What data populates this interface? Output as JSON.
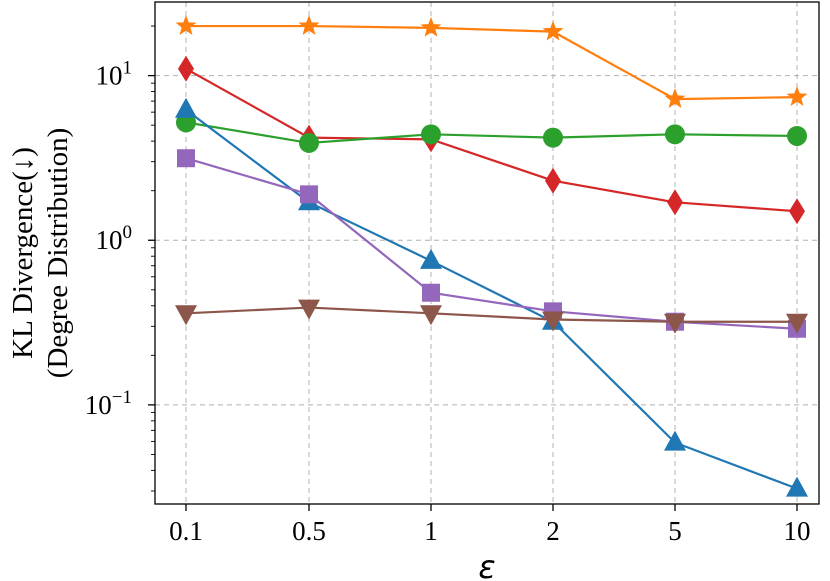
{
  "chart_data": {
    "type": "line",
    "title": "",
    "xlabel": "ε",
    "ylabel": "KL Divergence(↓)",
    "ylabel_line2": "(Degree Distribution)",
    "y_scale": "log",
    "ylim": [
      0.025,
      28
    ],
    "categories": [
      "0.1",
      "0.5",
      "1",
      "2",
      "5",
      "10"
    ],
    "y_ticks": [
      {
        "value": 0.1,
        "base": "10",
        "exp": "−1"
      },
      {
        "value": 1,
        "base": "10",
        "exp": "0"
      },
      {
        "value": 10,
        "base": "10",
        "exp": "1"
      }
    ],
    "grid": true,
    "legend": false,
    "series": [
      {
        "name": "orange-star",
        "color": "#ff7f0e",
        "marker": "star",
        "values": [
          20.0,
          20.0,
          19.5,
          18.5,
          7.2,
          7.4
        ]
      },
      {
        "name": "red-diamond",
        "color": "#d62728",
        "marker": "diamond",
        "values": [
          11.0,
          4.2,
          4.1,
          2.3,
          1.7,
          1.5
        ]
      },
      {
        "name": "green-circle",
        "color": "#2ca02c",
        "marker": "circle",
        "values": [
          5.2,
          3.9,
          4.4,
          4.2,
          4.4,
          4.3
        ]
      },
      {
        "name": "blue-triangle",
        "color": "#1f77b4",
        "marker": "triangle-up",
        "values": [
          6.2,
          1.7,
          0.75,
          0.32,
          0.059,
          0.031
        ]
      },
      {
        "name": "purple-square",
        "color": "#9467bd",
        "marker": "square",
        "values": [
          3.15,
          1.9,
          0.48,
          0.37,
          0.32,
          0.29
        ]
      },
      {
        "name": "brown-triangle-down",
        "color": "#8c564b",
        "marker": "triangle-down",
        "values": [
          0.36,
          0.39,
          0.36,
          0.33,
          0.32,
          0.32
        ]
      }
    ]
  }
}
